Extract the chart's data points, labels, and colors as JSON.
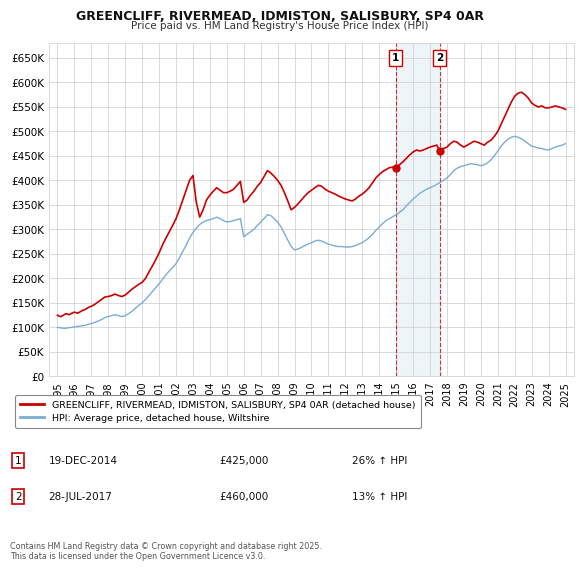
{
  "title": "GREENCLIFF, RIVERMEAD, IDMISTON, SALISBURY, SP4 0AR",
  "subtitle": "Price paid vs. HM Land Registry's House Price Index (HPI)",
  "legend_line1": "GREENCLIFF, RIVERMEAD, IDMISTON, SALISBURY, SP4 0AR (detached house)",
  "legend_line2": "HPI: Average price, detached house, Wiltshire",
  "marker1_date": "19-DEC-2014",
  "marker1_price": 425000,
  "marker1_label": "26% ↑ HPI",
  "marker2_date": "28-JUL-2017",
  "marker2_price": 460000,
  "marker2_label": "13% ↑ HPI",
  "marker1_x": 2014.97,
  "marker2_x": 2017.57,
  "ylim_min": 0,
  "ylim_max": 680000,
  "xlim_min": 1994.5,
  "xlim_max": 2025.5,
  "red_color": "#cc0000",
  "blue_color": "#7aadd4",
  "bg_color": "#ffffff",
  "grid_color": "#cccccc",
  "footer": "Contains HM Land Registry data © Crown copyright and database right 2025.\nThis data is licensed under the Open Government Licence v3.0.",
  "red_line": {
    "x": [
      1995.0,
      1995.1,
      1995.2,
      1995.3,
      1995.4,
      1995.5,
      1995.6,
      1995.7,
      1995.8,
      1995.9,
      1996.0,
      1996.1,
      1996.2,
      1996.3,
      1996.4,
      1996.5,
      1996.6,
      1996.7,
      1996.8,
      1996.9,
      1997.0,
      1997.2,
      1997.4,
      1997.6,
      1997.8,
      1998.0,
      1998.2,
      1998.4,
      1998.6,
      1998.8,
      1999.0,
      1999.2,
      1999.4,
      1999.6,
      1999.8,
      2000.0,
      2000.2,
      2000.4,
      2000.6,
      2000.8,
      2001.0,
      2001.2,
      2001.4,
      2001.6,
      2001.8,
      2002.0,
      2002.2,
      2002.4,
      2002.6,
      2002.8,
      2003.0,
      2003.2,
      2003.4,
      2003.6,
      2003.8,
      2004.0,
      2004.2,
      2004.4,
      2004.6,
      2004.8,
      2005.0,
      2005.2,
      2005.4,
      2005.6,
      2005.8,
      2006.0,
      2006.2,
      2006.4,
      2006.6,
      2006.8,
      2007.0,
      2007.2,
      2007.4,
      2007.6,
      2007.8,
      2008.0,
      2008.2,
      2008.4,
      2008.6,
      2008.8,
      2009.0,
      2009.2,
      2009.4,
      2009.6,
      2009.8,
      2010.0,
      2010.2,
      2010.4,
      2010.6,
      2010.8,
      2011.0,
      2011.2,
      2011.4,
      2011.6,
      2011.8,
      2012.0,
      2012.2,
      2012.4,
      2012.6,
      2012.8,
      2013.0,
      2013.2,
      2013.4,
      2013.6,
      2013.8,
      2014.0,
      2014.2,
      2014.4,
      2014.6,
      2014.8,
      2014.97,
      2015.0,
      2015.2,
      2015.4,
      2015.6,
      2015.8,
      2016.0,
      2016.2,
      2016.4,
      2016.6,
      2016.8,
      2017.0,
      2017.2,
      2017.4,
      2017.57,
      2017.8,
      2018.0,
      2018.2,
      2018.4,
      2018.6,
      2018.8,
      2019.0,
      2019.2,
      2019.4,
      2019.6,
      2019.8,
      2020.0,
      2020.2,
      2020.4,
      2020.6,
      2020.8,
      2021.0,
      2021.2,
      2021.4,
      2021.6,
      2021.8,
      2022.0,
      2022.2,
      2022.4,
      2022.6,
      2022.8,
      2023.0,
      2023.2,
      2023.4,
      2023.6,
      2023.8,
      2024.0,
      2024.2,
      2024.4,
      2024.6,
      2024.8,
      2025.0
    ],
    "y": [
      125000,
      123000,
      122000,
      124000,
      126000,
      128000,
      127000,
      126000,
      128000,
      130000,
      131000,
      130000,
      129000,
      131000,
      133000,
      135000,
      136000,
      138000,
      140000,
      142000,
      143000,
      147000,
      152000,
      157000,
      162000,
      163000,
      165000,
      168000,
      165000,
      163000,
      166000,
      172000,
      178000,
      183000,
      188000,
      192000,
      200000,
      213000,
      225000,
      238000,
      252000,
      268000,
      282000,
      295000,
      308000,
      322000,
      340000,
      360000,
      380000,
      400000,
      410000,
      355000,
      325000,
      340000,
      360000,
      370000,
      378000,
      385000,
      380000,
      375000,
      375000,
      378000,
      382000,
      390000,
      398000,
      355000,
      360000,
      370000,
      378000,
      388000,
      396000,
      408000,
      420000,
      415000,
      408000,
      400000,
      390000,
      375000,
      358000,
      340000,
      345000,
      352000,
      360000,
      368000,
      375000,
      380000,
      385000,
      390000,
      388000,
      382000,
      378000,
      375000,
      372000,
      368000,
      365000,
      362000,
      360000,
      358000,
      362000,
      368000,
      372000,
      378000,
      385000,
      395000,
      405000,
      412000,
      418000,
      422000,
      426000,
      427000,
      425000,
      428000,
      432000,
      438000,
      445000,
      452000,
      458000,
      462000,
      460000,
      462000,
      465000,
      468000,
      470000,
      472000,
      460000,
      465000,
      468000,
      475000,
      480000,
      478000,
      472000,
      468000,
      472000,
      476000,
      480000,
      478000,
      475000,
      472000,
      478000,
      482000,
      490000,
      500000,
      515000,
      530000,
      545000,
      560000,
      572000,
      578000,
      580000,
      575000,
      568000,
      558000,
      553000,
      550000,
      552000,
      548000,
      548000,
      550000,
      552000,
      550000,
      548000,
      545000
    ]
  },
  "blue_line": {
    "x": [
      1995.0,
      1995.2,
      1995.4,
      1995.6,
      1995.8,
      1996.0,
      1996.2,
      1996.4,
      1996.6,
      1996.8,
      1997.0,
      1997.2,
      1997.4,
      1997.6,
      1997.8,
      1998.0,
      1998.2,
      1998.4,
      1998.6,
      1998.8,
      1999.0,
      1999.2,
      1999.4,
      1999.6,
      1999.8,
      2000.0,
      2000.2,
      2000.4,
      2000.6,
      2000.8,
      2001.0,
      2001.2,
      2001.4,
      2001.6,
      2001.8,
      2002.0,
      2002.2,
      2002.4,
      2002.6,
      2002.8,
      2003.0,
      2003.2,
      2003.4,
      2003.6,
      2003.8,
      2004.0,
      2004.2,
      2004.4,
      2004.6,
      2004.8,
      2005.0,
      2005.2,
      2005.4,
      2005.6,
      2005.8,
      2006.0,
      2006.2,
      2006.4,
      2006.6,
      2006.8,
      2007.0,
      2007.2,
      2007.4,
      2007.6,
      2007.8,
      2008.0,
      2008.2,
      2008.4,
      2008.6,
      2008.8,
      2009.0,
      2009.2,
      2009.4,
      2009.6,
      2009.8,
      2010.0,
      2010.2,
      2010.4,
      2010.6,
      2010.8,
      2011.0,
      2011.2,
      2011.4,
      2011.6,
      2011.8,
      2012.0,
      2012.2,
      2012.4,
      2012.6,
      2012.8,
      2013.0,
      2013.2,
      2013.4,
      2013.6,
      2013.8,
      2014.0,
      2014.2,
      2014.4,
      2014.6,
      2014.8,
      2015.0,
      2015.2,
      2015.4,
      2015.6,
      2015.8,
      2016.0,
      2016.2,
      2016.4,
      2016.6,
      2016.8,
      2017.0,
      2017.2,
      2017.4,
      2017.6,
      2017.8,
      2018.0,
      2018.2,
      2018.4,
      2018.6,
      2018.8,
      2019.0,
      2019.2,
      2019.4,
      2019.6,
      2019.8,
      2020.0,
      2020.2,
      2020.4,
      2020.6,
      2020.8,
      2021.0,
      2021.2,
      2021.4,
      2021.6,
      2021.8,
      2022.0,
      2022.2,
      2022.4,
      2022.6,
      2022.8,
      2023.0,
      2023.2,
      2023.4,
      2023.6,
      2023.8,
      2024.0,
      2024.2,
      2024.4,
      2024.6,
      2024.8,
      2025.0
    ],
    "y": [
      100000,
      99000,
      98000,
      99000,
      100000,
      101000,
      102000,
      103000,
      104000,
      106000,
      108000,
      110000,
      113000,
      116000,
      120000,
      122000,
      124000,
      126000,
      124000,
      122000,
      124000,
      128000,
      133000,
      139000,
      145000,
      150000,
      157000,
      165000,
      173000,
      181000,
      189000,
      198000,
      207000,
      215000,
      222000,
      230000,
      242000,
      255000,
      268000,
      282000,
      294000,
      303000,
      310000,
      315000,
      318000,
      320000,
      322000,
      325000,
      322000,
      318000,
      315000,
      316000,
      318000,
      320000,
      322000,
      285000,
      290000,
      295000,
      300000,
      308000,
      315000,
      322000,
      330000,
      328000,
      322000,
      315000,
      305000,
      292000,
      278000,
      265000,
      258000,
      260000,
      263000,
      267000,
      270000,
      273000,
      276000,
      278000,
      276000,
      273000,
      270000,
      268000,
      266000,
      265000,
      265000,
      264000,
      264000,
      265000,
      267000,
      270000,
      273000,
      278000,
      283000,
      290000,
      298000,
      305000,
      312000,
      318000,
      322000,
      326000,
      330000,
      335000,
      340000,
      348000,
      355000,
      362000,
      368000,
      374000,
      378000,
      382000,
      385000,
      388000,
      392000,
      396000,
      400000,
      405000,
      412000,
      420000,
      425000,
      428000,
      430000,
      432000,
      434000,
      433000,
      432000,
      430000,
      432000,
      436000,
      442000,
      450000,
      460000,
      470000,
      478000,
      484000,
      488000,
      490000,
      488000,
      485000,
      480000,
      475000,
      470000,
      468000,
      466000,
      465000,
      463000,
      462000,
      465000,
      468000,
      470000,
      472000,
      475000
    ]
  }
}
